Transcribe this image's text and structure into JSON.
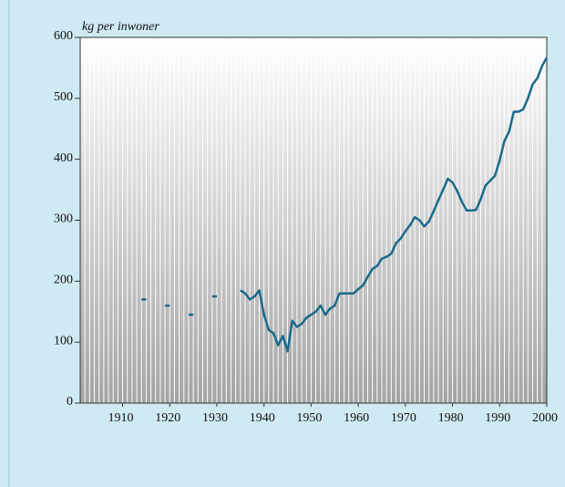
{
  "chart_data": {
    "type": "line",
    "y_axis_label": "kg per inwoner",
    "x": [
      1914,
      1915,
      1916,
      1917,
      1918,
      1919,
      1920,
      1921,
      1922,
      1923,
      1924,
      1925,
      1926,
      1927,
      1928,
      1929,
      1930,
      1931,
      1932,
      1933,
      1934,
      1935,
      1936,
      1937,
      1938,
      1939,
      1940,
      1941,
      1942,
      1943,
      1944,
      1945,
      1946,
      1947,
      1948,
      1949,
      1950,
      1951,
      1952,
      1953,
      1954,
      1955,
      1956,
      1957,
      1958,
      1959,
      1960,
      1961,
      1962,
      1963,
      1964,
      1965,
      1966,
      1967,
      1968,
      1969,
      1970,
      1971,
      1972,
      1973,
      1974,
      1975,
      1976,
      1977,
      1978,
      1979,
      1980,
      1981,
      1982,
      1983,
      1984,
      1985,
      1986,
      1987,
      1988,
      1989,
      1990,
      1991,
      1992,
      1993,
      1994,
      1995,
      1996,
      1997,
      1998,
      1999,
      2000
    ],
    "values": [
      170,
      170,
      null,
      null,
      null,
      160,
      160,
      null,
      null,
      null,
      145,
      145,
      null,
      null,
      null,
      175,
      175,
      null,
      null,
      null,
      null,
      185,
      180,
      170,
      175,
      185,
      145,
      120,
      115,
      95,
      110,
      85,
      135,
      125,
      130,
      140,
      145,
      150,
      160,
      145,
      155,
      160,
      180,
      180,
      180,
      180,
      187,
      193,
      207,
      220,
      225,
      237,
      240,
      245,
      262,
      270,
      282,
      292,
      305,
      300,
      290,
      298,
      315,
      333,
      350,
      368,
      362,
      348,
      330,
      316,
      316,
      317,
      335,
      357,
      365,
      373,
      398,
      430,
      445,
      478,
      478,
      482,
      500,
      523,
      533,
      553,
      567
    ],
    "color": "#1a6a8c",
    "xlim": [
      1901,
      2000
    ],
    "xticks": [
      1910,
      1920,
      1930,
      1940,
      1950,
      1960,
      1970,
      1980,
      1990,
      2000
    ],
    "ylim": [
      0,
      600
    ],
    "yticks": [
      0,
      100,
      200,
      300,
      400,
      500,
      600
    ],
    "grid": true
  }
}
